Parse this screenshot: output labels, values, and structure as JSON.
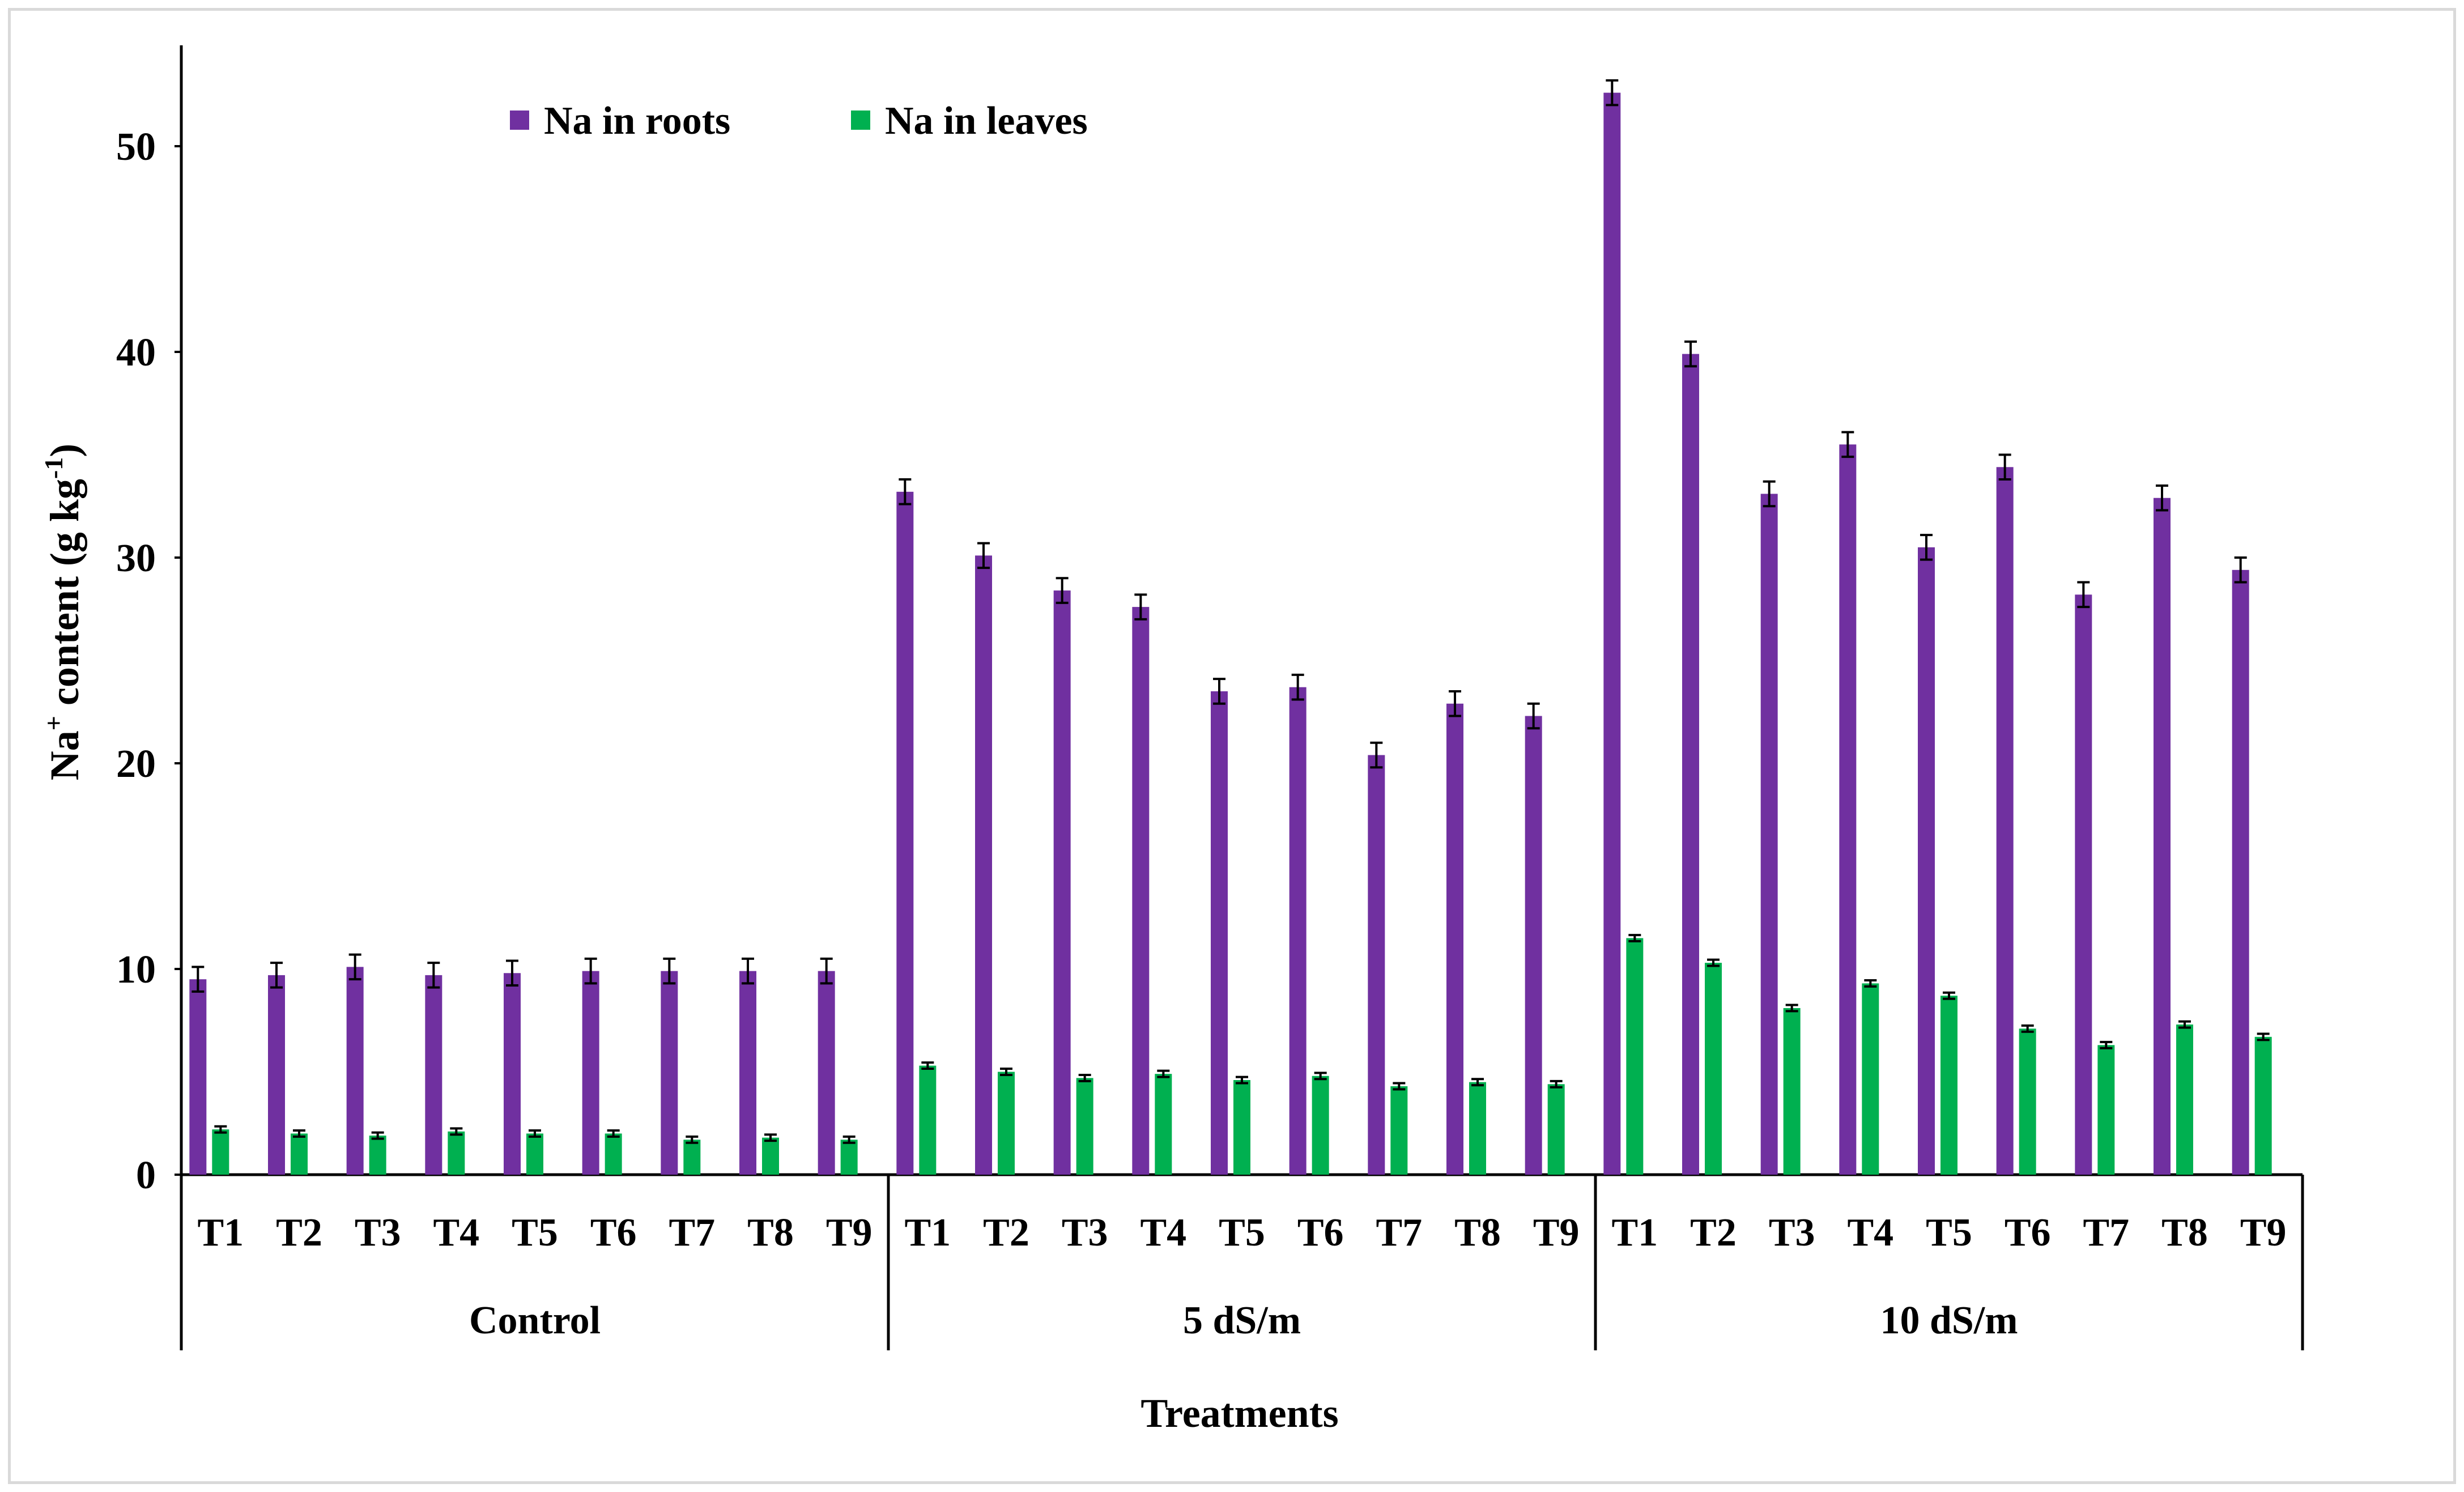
{
  "chart_data": {
    "type": "bar",
    "title": "",
    "xlabel": "Treatments",
    "ylabel": "Na+ content (g kg-1)",
    "ylabel_parts": {
      "base": "Na",
      "sup1": "+",
      "mid": " content (g kg",
      "sup2": "-1",
      "end": ")"
    },
    "ylim": [
      0,
      55
    ],
    "yticks": [
      0,
      10,
      20,
      30,
      40,
      50
    ],
    "groups": [
      "Control",
      "5 dS/m",
      "10 dS/m"
    ],
    "categories": [
      "T1",
      "T2",
      "T3",
      "T4",
      "T5",
      "T6",
      "T7",
      "T8",
      "T9"
    ],
    "legend_position": "top-left",
    "series": [
      {
        "name": "Na in roots",
        "color": "#7030a0",
        "values": [
          [
            9.5,
            9.7,
            10.1,
            9.7,
            9.8,
            9.9,
            9.9,
            9.9,
            9.9
          ],
          [
            33.2,
            30.1,
            28.4,
            27.6,
            23.5,
            23.7,
            20.4,
            22.9,
            22.3
          ],
          [
            52.6,
            39.9,
            33.1,
            35.5,
            30.5,
            34.4,
            28.2,
            32.9,
            29.4
          ]
        ],
        "error": 0.6
      },
      {
        "name": "Na in leaves",
        "color": "#00b050",
        "values": [
          [
            2.2,
            2.0,
            1.9,
            2.1,
            2.0,
            2.0,
            1.7,
            1.8,
            1.7
          ],
          [
            5.3,
            5.0,
            4.7,
            4.9,
            4.6,
            4.8,
            4.3,
            4.5,
            4.4
          ],
          [
            11.5,
            10.3,
            8.1,
            9.3,
            8.7,
            7.1,
            6.3,
            7.3,
            6.7
          ]
        ],
        "error": 0.15
      }
    ]
  }
}
